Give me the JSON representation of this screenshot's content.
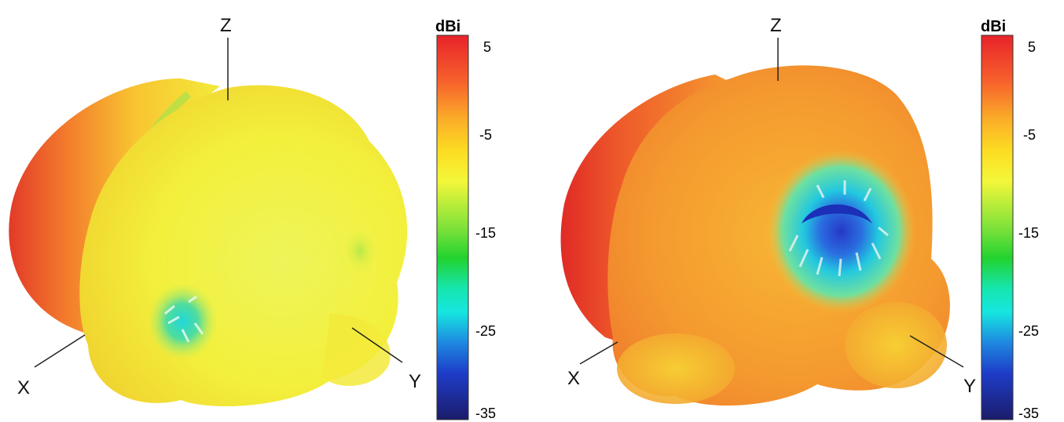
{
  "panels": [
    {
      "axes": {
        "z": "Z",
        "x": "X",
        "y": "Y"
      },
      "colorbar": {
        "unit": "dBi",
        "ticks": [
          "5",
          "-5",
          "-15",
          "-25",
          "-35"
        ]
      }
    },
    {
      "axes": {
        "z": "Z",
        "x": "X",
        "y": "Y"
      },
      "colorbar": {
        "unit": "dBi",
        "ticks": [
          "5",
          "-5",
          "-15",
          "-25",
          "-35"
        ]
      }
    }
  ],
  "colors": {
    "colormap": [
      "#e8232a",
      "#f98a2d",
      "#fddc22",
      "#f3f73a",
      "#22d22f",
      "#16e6e0",
      "#1e3cc8",
      "#1c1c6a"
    ],
    "surface_high": "#e8332b",
    "surface_mid": "#f5a531",
    "surface_low": "#f3f040",
    "null_cyan": "#20d8d8",
    "null_blue": "#2a40d0"
  }
}
